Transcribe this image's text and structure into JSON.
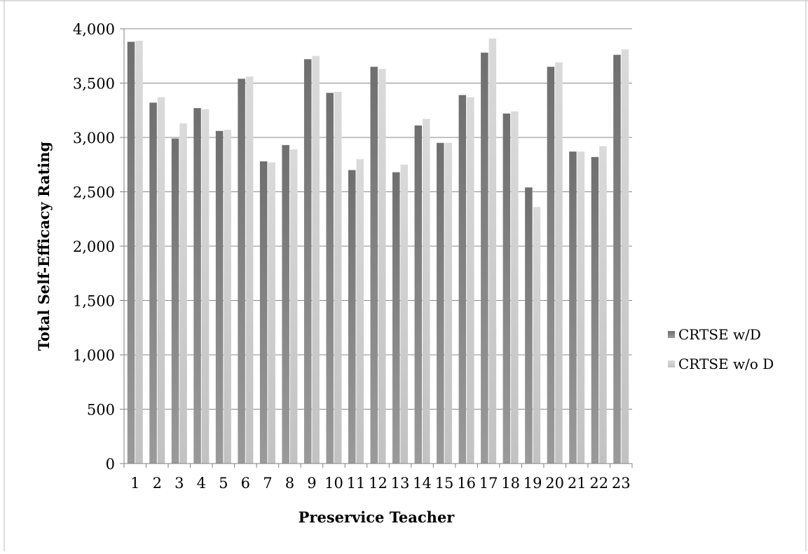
{
  "chart_data": {
    "type": "bar",
    "title": "",
    "xlabel": "Preservice Teacher",
    "ylabel": "Total Self-Efficacy Rating",
    "categories": [
      "1",
      "2",
      "3",
      "4",
      "5",
      "6",
      "7",
      "8",
      "9",
      "10",
      "11",
      "12",
      "13",
      "14",
      "15",
      "16",
      "17",
      "18",
      "19",
      "20",
      "21",
      "22",
      "23"
    ],
    "series": [
      {
        "name": "CRTSE w/D",
        "values": [
          3880,
          3320,
          2990,
          3270,
          3060,
          3540,
          2780,
          2930,
          3720,
          3410,
          2700,
          3650,
          2680,
          3110,
          2950,
          3390,
          3780,
          3220,
          2540,
          3650,
          2870,
          2820,
          3760
        ]
      },
      {
        "name": "CRTSE w/o D",
        "values": [
          3890,
          3370,
          3130,
          3260,
          3070,
          3560,
          2770,
          2890,
          3750,
          3420,
          2800,
          3630,
          2750,
          3170,
          2950,
          3370,
          3910,
          3240,
          2360,
          3690,
          2870,
          2920,
          3810
        ]
      }
    ],
    "ylim": [
      0,
      4000
    ],
    "yticks": [
      0,
      500,
      1000,
      1500,
      2000,
      2500,
      3000,
      3500,
      4000
    ],
    "ytick_labels": [
      "0",
      "500",
      "1,000",
      "1,500",
      "2,000",
      "2,500",
      "3,000",
      "3,500",
      "4,000"
    ],
    "grid": true,
    "legend": "right",
    "colors": {
      "series0": "#7a7a7a",
      "series1": "#d6d6d6",
      "grid": "#8a8a8a",
      "border": "#bbbbbb"
    }
  }
}
